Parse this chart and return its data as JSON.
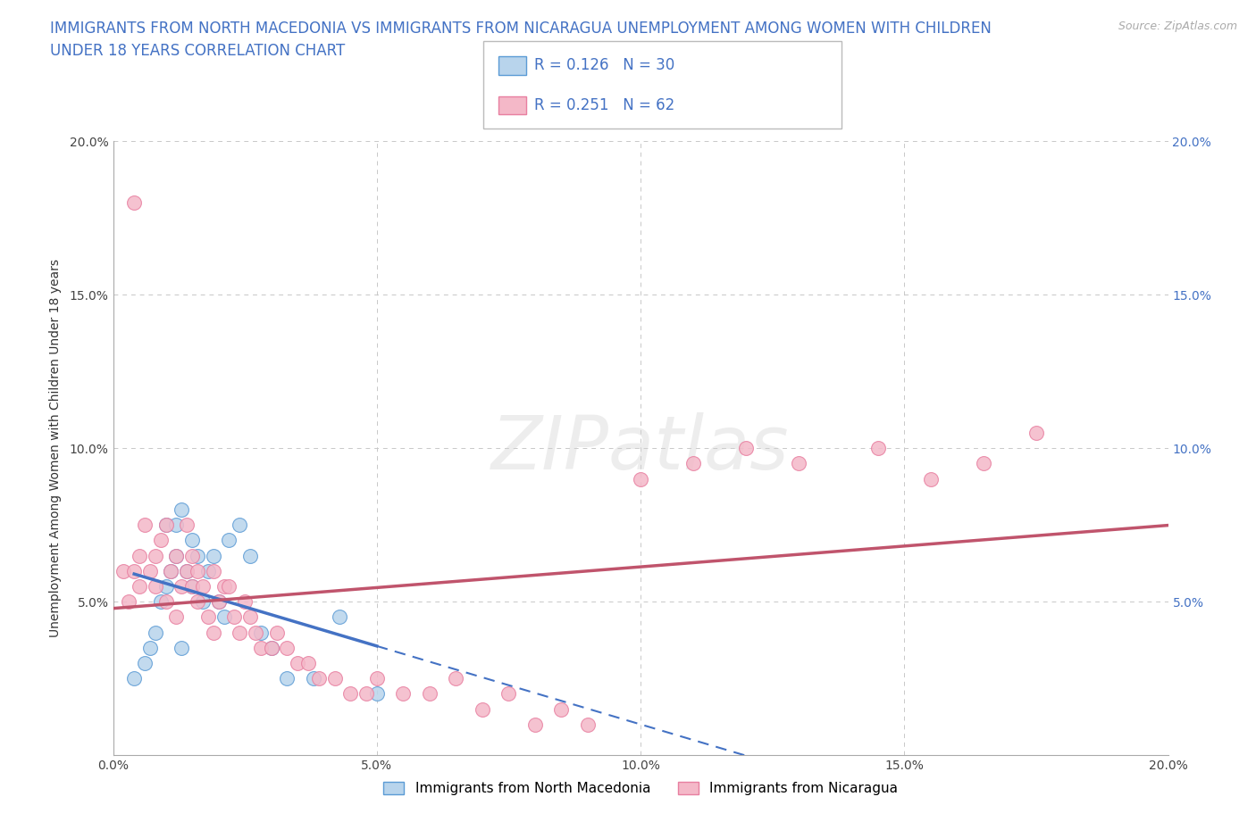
{
  "title": "IMMIGRANTS FROM NORTH MACEDONIA VS IMMIGRANTS FROM NICARAGUA UNEMPLOYMENT AMONG WOMEN WITH CHILDREN\nUNDER 18 YEARS CORRELATION CHART",
  "source": "Source: ZipAtlas.com",
  "ylabel": "Unemployment Among Women with Children Under 18 years",
  "xlim": [
    0.0,
    0.2
  ],
  "ylim": [
    0.0,
    0.2
  ],
  "xticks": [
    0.0,
    0.05,
    0.1,
    0.15,
    0.2
  ],
  "yticks": [
    0.0,
    0.05,
    0.1,
    0.15,
    0.2
  ],
  "xticklabels": [
    "0.0%",
    "5.0%",
    "10.0%",
    "15.0%",
    "20.0%"
  ],
  "yticklabels": [
    "",
    "5.0%",
    "10.0%",
    "15.0%",
    "20.0%"
  ],
  "background_color": "#ffffff",
  "grid_color": "#c8c8c8",
  "watermark": "ZIPatlas",
  "series": [
    {
      "name": "Immigrants from North Macedonia",
      "R": 0.126,
      "N": 30,
      "color": "#b8d4ec",
      "edge_color": "#5b9bd5",
      "trend_color": "#4472c4",
      "x": [
        0.004,
        0.006,
        0.007,
        0.008,
        0.009,
        0.01,
        0.01,
        0.011,
        0.012,
        0.012,
        0.013,
        0.013,
        0.014,
        0.015,
        0.015,
        0.016,
        0.017,
        0.018,
        0.019,
        0.02,
        0.021,
        0.022,
        0.024,
        0.026,
        0.028,
        0.03,
        0.033,
        0.038,
        0.043,
        0.05
      ],
      "y": [
        0.025,
        0.03,
        0.035,
        0.04,
        0.05,
        0.055,
        0.075,
        0.06,
        0.065,
        0.075,
        0.035,
        0.08,
        0.06,
        0.07,
        0.055,
        0.065,
        0.05,
        0.06,
        0.065,
        0.05,
        0.045,
        0.07,
        0.075,
        0.065,
        0.04,
        0.035,
        0.025,
        0.025,
        0.045,
        0.02
      ]
    },
    {
      "name": "Immigrants from Nicaragua",
      "R": 0.251,
      "N": 62,
      "color": "#f4b8c8",
      "edge_color": "#e87fa0",
      "trend_color": "#c0546c",
      "x": [
        0.002,
        0.003,
        0.004,
        0.005,
        0.005,
        0.006,
        0.007,
        0.008,
        0.008,
        0.009,
        0.01,
        0.01,
        0.011,
        0.012,
        0.012,
        0.013,
        0.014,
        0.014,
        0.015,
        0.015,
        0.016,
        0.016,
        0.017,
        0.018,
        0.019,
        0.019,
        0.02,
        0.021,
        0.022,
        0.023,
        0.024,
        0.025,
        0.026,
        0.027,
        0.028,
        0.03,
        0.031,
        0.033,
        0.035,
        0.037,
        0.039,
        0.042,
        0.045,
        0.048,
        0.05,
        0.055,
        0.06,
        0.065,
        0.07,
        0.075,
        0.08,
        0.085,
        0.09,
        0.1,
        0.11,
        0.12,
        0.13,
        0.145,
        0.155,
        0.165,
        0.175,
        0.004
      ],
      "y": [
        0.06,
        0.05,
        0.06,
        0.065,
        0.055,
        0.075,
        0.06,
        0.065,
        0.055,
        0.07,
        0.05,
        0.075,
        0.06,
        0.045,
        0.065,
        0.055,
        0.06,
        0.075,
        0.055,
        0.065,
        0.05,
        0.06,
        0.055,
        0.045,
        0.04,
        0.06,
        0.05,
        0.055,
        0.055,
        0.045,
        0.04,
        0.05,
        0.045,
        0.04,
        0.035,
        0.035,
        0.04,
        0.035,
        0.03,
        0.03,
        0.025,
        0.025,
        0.02,
        0.02,
        0.025,
        0.02,
        0.02,
        0.025,
        0.015,
        0.02,
        0.01,
        0.015,
        0.01,
        0.09,
        0.095,
        0.1,
        0.095,
        0.1,
        0.09,
        0.095,
        0.105,
        0.18
      ]
    }
  ],
  "legend": {
    "R1": "0.126",
    "N1": "30",
    "R2": "0.251",
    "N2": "62",
    "color1": "#b8d4ec",
    "color2": "#f4b8c8",
    "edgecolor1": "#5b9bd5",
    "edgecolor2": "#e87fa0",
    "text_color": "#4472c4"
  },
  "title_fontsize": 12,
  "axis_fontsize": 10,
  "tick_fontsize": 10
}
